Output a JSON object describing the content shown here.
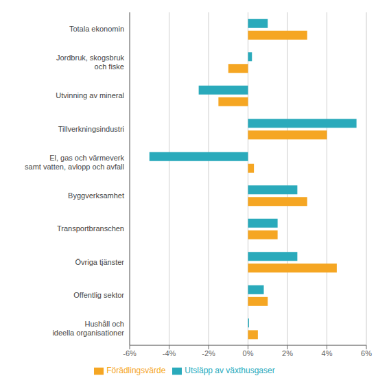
{
  "chart_data": {
    "type": "bar",
    "orientation": "horizontal",
    "categories": [
      "Totala ekonomin",
      "Jordbruk, skogsbruk\noch fiske",
      "Utvinning av mineral",
      "Tillverkningsindustri",
      "El, gas och värmeverk\nsamt vatten, avlopp och avfall",
      "Byggverksamhet",
      "Transportbranschen",
      "Övriga tjänster",
      "Offentlig sektor",
      "Hushåll och\nideella organisationer"
    ],
    "series": [
      {
        "name": "Utsläpp av växthusgaser",
        "color": "#2aaabb",
        "values": [
          1.0,
          0.2,
          -2.5,
          5.5,
          -5.0,
          2.5,
          1.5,
          2.5,
          0.8,
          0.05
        ]
      },
      {
        "name": "Förädlingsvärde",
        "color": "#f5a623",
        "values": [
          3.0,
          -1.0,
          -1.5,
          4.0,
          0.3,
          3.0,
          1.5,
          4.5,
          1.0,
          0.5
        ]
      }
    ],
    "xlim": [
      -6,
      6
    ],
    "xticks": [
      {
        "value": -6,
        "label": "-6%"
      },
      {
        "value": -4,
        "label": "-4%"
      },
      {
        "value": -2,
        "label": "-2%"
      },
      {
        "value": 0,
        "label": "0%"
      },
      {
        "value": 2,
        "label": "2%"
      },
      {
        "value": 4,
        "label": "4%"
      },
      {
        "value": 6,
        "label": "6%"
      }
    ],
    "grid": true,
    "legend": "bottom"
  }
}
